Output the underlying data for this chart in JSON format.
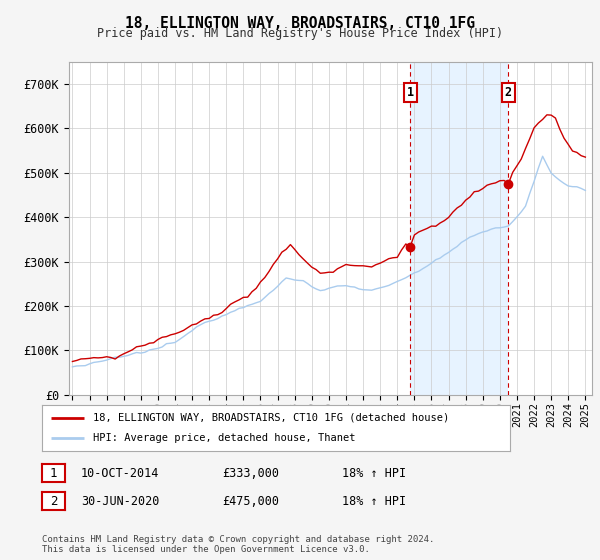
{
  "title": "18, ELLINGTON WAY, BROADSTAIRS, CT10 1FG",
  "subtitle": "Price paid vs. HM Land Registry's House Price Index (HPI)",
  "ylim": [
    0,
    750000
  ],
  "yticks": [
    0,
    100000,
    200000,
    300000,
    400000,
    500000,
    600000,
    700000
  ],
  "ytick_labels": [
    "£0",
    "£100K",
    "£200K",
    "£300K",
    "£400K",
    "£500K",
    "£600K",
    "£700K"
  ],
  "hpi_color": "#aaccee",
  "price_color": "#cc0000",
  "shade_color": "#ddeeff",
  "t1": 2014.75,
  "t2": 2020.5,
  "sale1_price": 333000,
  "sale2_price": 475000,
  "marker1_date_text": "10-OCT-2014",
  "marker1_price": "£333,000",
  "marker1_hpi": "18% ↑ HPI",
  "marker2_date_text": "30-JUN-2020",
  "marker2_price": "£475,000",
  "marker2_hpi": "18% ↑ HPI",
  "legend_label_red": "18, ELLINGTON WAY, BROADSTAIRS, CT10 1FG (detached house)",
  "legend_label_blue": "HPI: Average price, detached house, Thanet",
  "footer": "Contains HM Land Registry data © Crown copyright and database right 2024.\nThis data is licensed under the Open Government Licence v3.0.",
  "background_color": "#f5f5f5",
  "plot_bg_color": "#ffffff"
}
